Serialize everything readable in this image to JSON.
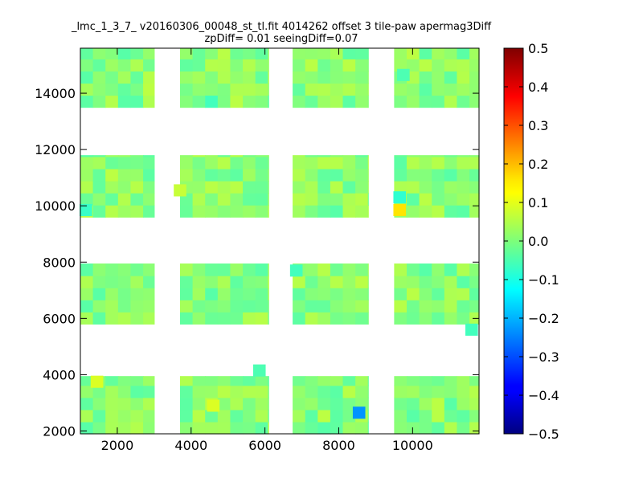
{
  "chart_data": {
    "type": "heatmap",
    "title": "_lmc_1_3_7_ v20160306_00048_st_tl.fit 4014262 offset 3 tile-paw apermag3Diff",
    "subtitle": "zpDiff= 0.01 seeingDiff=0.07",
    "xlabel": "",
    "ylabel": "",
    "xlim": [
      1000,
      11800
    ],
    "ylim": [
      1900,
      15600
    ],
    "x_ticks": [
      2000,
      4000,
      6000,
      8000,
      10000
    ],
    "x_tick_labels": [
      "2000",
      "4000",
      "6000",
      "8000",
      "10000"
    ],
    "y_ticks": [
      2000,
      4000,
      6000,
      8000,
      10000,
      12000,
      14000
    ],
    "y_tick_labels": [
      "2000",
      "4000",
      "6000",
      "8000",
      "10000",
      "12000",
      "14000"
    ],
    "colorbar": {
      "colormap": "jet",
      "range": [
        -0.5,
        0.5
      ],
      "ticks": [
        0.5,
        0.4,
        0.3,
        0.2,
        0.1,
        0.0,
        -0.1,
        -0.2,
        -0.3,
        -0.4,
        -0.5
      ],
      "tick_labels": [
        "0.5",
        "0.4",
        "0.3",
        "0.2",
        "0.1",
        "0.0",
        "−0.1",
        "−0.2",
        "−0.3",
        "−0.4",
        "−0.5"
      ]
    },
    "cell_size": [
      340,
      430
    ],
    "grid": false,
    "column_groups": [
      [
        1000,
        3000
      ],
      [
        3700,
        6100
      ],
      [
        6750,
        8800
      ],
      [
        9500,
        11800
      ]
    ],
    "row_groups": [
      [
        1900,
        3950
      ],
      [
        5800,
        7950
      ],
      [
        9600,
        11800
      ],
      [
        13500,
        15600
      ]
    ],
    "special_cells": [
      {
        "x": 8550,
        "y": 2650,
        "value": -0.23
      },
      {
        "x": 9650,
        "y": 9850,
        "value": 0.15
      },
      {
        "x": 9650,
        "y": 10300,
        "value": -0.08
      },
      {
        "x": 1150,
        "y": 9850,
        "value": -0.07
      },
      {
        "x": 4550,
        "y": 13700,
        "value": -0.06
      },
      {
        "x": 5850,
        "y": 4150,
        "value": -0.05
      },
      {
        "x": 6850,
        "y": 7700,
        "value": -0.06
      },
      {
        "x": 11600,
        "y": 5600,
        "value": -0.06
      },
      {
        "x": 9750,
        "y": 14650,
        "value": -0.05
      },
      {
        "x": 3700,
        "y": 10550,
        "value": 0.07
      },
      {
        "x": 4600,
        "y": 2900,
        "value": 0.09
      },
      {
        "x": 1450,
        "y": 3750,
        "value": 0.09
      }
    ],
    "base_range": [
      -0.04,
      0.06
    ]
  }
}
